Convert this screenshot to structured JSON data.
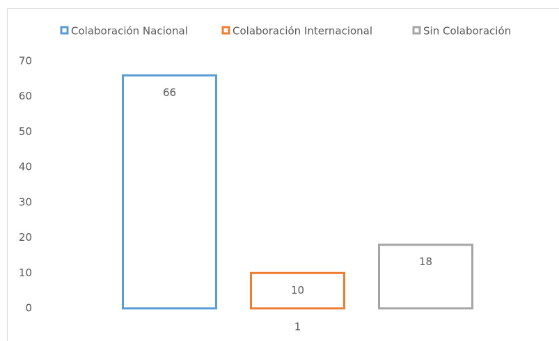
{
  "chart_data": {
    "type": "bar",
    "categories": [
      "1"
    ],
    "series": [
      {
        "name": "Colaboración Nacional",
        "color": "#5b9bd5",
        "values": [
          66
        ]
      },
      {
        "name": "Colaboración Internacional",
        "color": "#ed7d31",
        "values": [
          10
        ]
      },
      {
        "name": "Sin Colaboración",
        "color": "#a5a5a5",
        "values": [
          18
        ]
      }
    ],
    "ylim": [
      0,
      70
    ],
    "yticks": [
      0,
      10,
      20,
      30,
      40,
      50,
      60,
      70
    ],
    "grid": false,
    "legend": "top"
  }
}
